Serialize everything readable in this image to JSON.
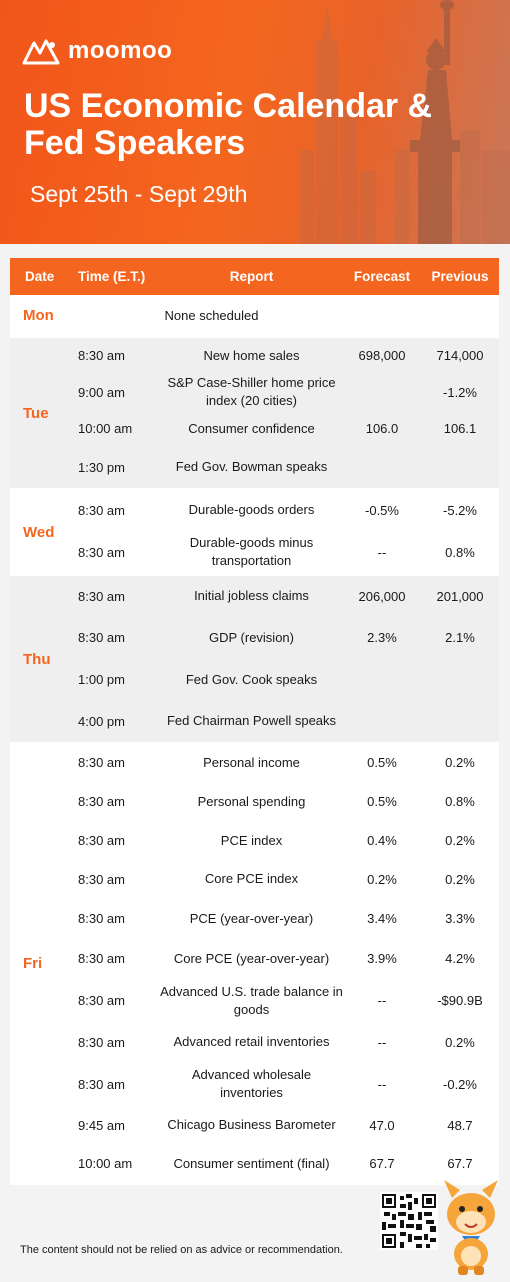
{
  "brand": {
    "name": "moomoo"
  },
  "header": {
    "title": "US Economic Calendar & Fed Speakers",
    "date_range": "Sept 25th - Sept 29th"
  },
  "table": {
    "columns": [
      "Date",
      "Time (E.T.)",
      "Report",
      "Forecast",
      "Previous"
    ],
    "days": [
      {
        "day": "Mon",
        "rows": [
          {
            "time": "",
            "report": "None scheduled",
            "forecast": "",
            "previous": ""
          }
        ]
      },
      {
        "day": "Tue",
        "rows": [
          {
            "time": "8:30 am",
            "report": "New home sales",
            "forecast": "698,000",
            "previous": "714,000"
          },
          {
            "time": "9:00 am",
            "report": "S&P Case-Shiller home price index (20 cities)",
            "forecast": "",
            "previous": "-1.2%"
          },
          {
            "time": "10:00 am",
            "report": "Consumer confidence",
            "forecast": "106.0",
            "previous": "106.1"
          },
          {
            "time": "1:30 pm",
            "report": "Fed Gov. Bowman speaks",
            "forecast": "",
            "previous": ""
          }
        ]
      },
      {
        "day": "Wed",
        "rows": [
          {
            "time": "8:30 am",
            "report": "Durable-goods orders",
            "forecast": "-0.5%",
            "previous": "-5.2%"
          },
          {
            "time": "8:30 am",
            "report": "Durable-goods minus transportation",
            "forecast": "--",
            "previous": "0.8%"
          }
        ]
      },
      {
        "day": "Thu",
        "rows": [
          {
            "time": "8:30 am",
            "report": "Initial jobless claims",
            "forecast": "206,000",
            "previous": "201,000"
          },
          {
            "time": "8:30 am",
            "report": "GDP (revision)",
            "forecast": "2.3%",
            "previous": "2.1%"
          },
          {
            "time": "1:00 pm",
            "report": "Fed Gov. Cook speaks",
            "forecast": "",
            "previous": ""
          },
          {
            "time": "4:00 pm",
            "report": "Fed Chairman Powell speaks",
            "forecast": "",
            "previous": ""
          }
        ]
      },
      {
        "day": "Fri",
        "rows": [
          {
            "time": "8:30 am",
            "report": "Personal income",
            "forecast": "0.5%",
            "previous": "0.2%"
          },
          {
            "time": "8:30 am",
            "report": "Personal spending",
            "forecast": "0.5%",
            "previous": "0.8%"
          },
          {
            "time": "8:30 am",
            "report": "PCE index",
            "forecast": "0.4%",
            "previous": "0.2%"
          },
          {
            "time": "8:30 am",
            "report": "Core PCE index",
            "forecast": "0.2%",
            "previous": "0.2%"
          },
          {
            "time": "8:30 am",
            "report": "PCE (year-over-year)",
            "forecast": "3.4%",
            "previous": "3.3%"
          },
          {
            "time": "8:30 am",
            "report": "Core PCE (year-over-year)",
            "forecast": "3.9%",
            "previous": "4.2%"
          },
          {
            "time": "8:30 am",
            "report": "Advanced U.S. trade balance in goods",
            "forecast": "--",
            "previous": "-$90.9B"
          },
          {
            "time": "8:30 am",
            "report": "Advanced retail inventories",
            "forecast": "--",
            "previous": "0.2%"
          },
          {
            "time": "8:30 am",
            "report": "Advanced wholesale inventories",
            "forecast": "--",
            "previous": "-0.2%"
          },
          {
            "time": "9:45 am",
            "report": "Chicago Business Barometer",
            "forecast": "47.0",
            "previous": "48.7"
          },
          {
            "time": "10:00 am",
            "report": "Consumer sentiment (final)",
            "forecast": "67.7",
            "previous": "67.7"
          }
        ]
      }
    ]
  },
  "footer": {
    "disclaimer": "The content should not be relied on as advice or recommendation."
  },
  "colors": {
    "accent": "#f4661f",
    "row_grey": "#efefef",
    "row_white": "#ffffff"
  }
}
